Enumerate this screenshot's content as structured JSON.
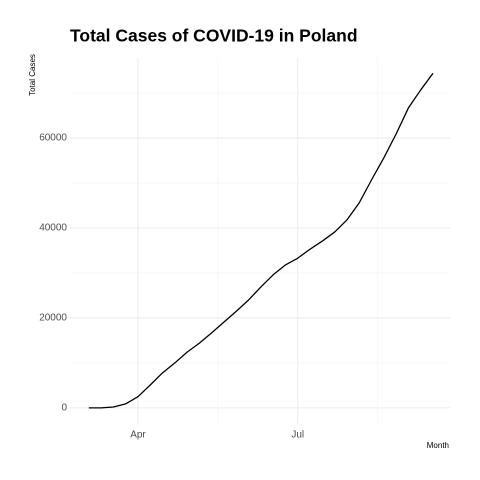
{
  "chart_data": {
    "type": "line",
    "title": "Total Cases of COVID-19 in Poland",
    "x_label": "Month",
    "y_label": "Total Cases",
    "categories": [
      null,
      null,
      null,
      null,
      "Apr",
      null,
      null,
      null,
      null,
      null,
      null,
      null,
      null,
      null,
      null,
      null,
      null,
      "Jul",
      null,
      null,
      null,
      null,
      null,
      null,
      null,
      null,
      null,
      null,
      null
    ],
    "series": [
      {
        "name": "Total Cases",
        "color": "#000000",
        "values": [
          0,
          10,
          200,
          900,
          2500,
          5100,
          7800,
          10000,
          12400,
          14400,
          16700,
          19100,
          21500,
          24000,
          26900,
          29600,
          31800,
          33300,
          35300,
          37100,
          39100,
          41800,
          45600,
          50700,
          55600,
          60900,
          66700,
          70700,
          74400
        ]
      }
    ],
    "ylim": [
      -3800,
      77800
    ],
    "yticks": [
      0,
      20000,
      40000,
      60000
    ],
    "grid": true
  }
}
